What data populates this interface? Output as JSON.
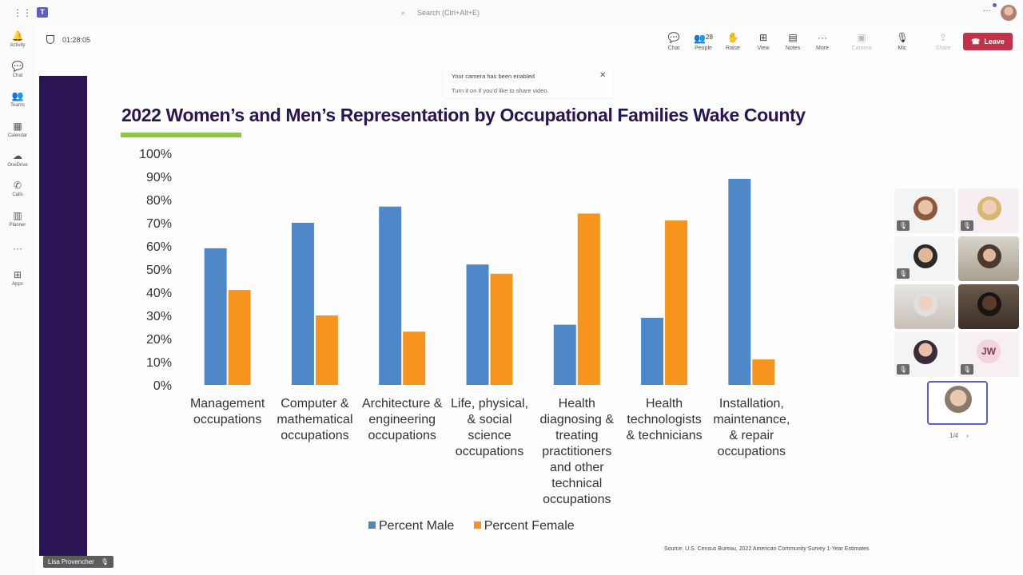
{
  "app": {
    "search_placeholder": "Search (Ctrl+Alt+E)",
    "teams_logo": "T",
    "more": "···"
  },
  "rail": {
    "items": [
      {
        "label": "Activity",
        "icon": "🔔"
      },
      {
        "label": "Chat",
        "icon": "💬"
      },
      {
        "label": "Teams",
        "icon": "👥"
      },
      {
        "label": "Calendar",
        "icon": "▦"
      },
      {
        "label": "OneDrive",
        "icon": "☁"
      },
      {
        "label": "Calls",
        "icon": "✆"
      },
      {
        "label": "Planner",
        "icon": "▥"
      },
      {
        "label": "",
        "icon": "···"
      },
      {
        "label": "Apps",
        "icon": "⊞"
      }
    ]
  },
  "meeting": {
    "timer": "01:28:05",
    "controls": {
      "chat": {
        "label": "Chat",
        "icon": "💬"
      },
      "people": {
        "label": "People",
        "icon": "👥",
        "count": "28"
      },
      "raise": {
        "label": "Raise",
        "icon": "✋"
      },
      "view": {
        "label": "View",
        "icon": "⊞"
      },
      "notes": {
        "label": "Notes",
        "icon": "▤"
      },
      "more": {
        "label": "More",
        "icon": "···"
      },
      "camera": {
        "label": "Camera",
        "icon": "▣"
      },
      "mic": {
        "label": "Mic",
        "icon": "🎙"
      },
      "share": {
        "label": "Share",
        "icon": "⇪"
      }
    },
    "leave_label": "Leave",
    "leave_icon": "☎"
  },
  "toast": {
    "line1": "Your camera has been enabled",
    "line2": "Turn it on if you'd like to share video.",
    "close": "✕"
  },
  "slide": {
    "title": "2022 Women’s and Men’s Representation by Occupational Families Wake County",
    "source": "Source: U.S. Census Bureau, 2022 American Community Survey 1-Year Estimates"
  },
  "chart_data": {
    "type": "bar",
    "title": "2022 Women’s and Men’s Representation by Occupational Families Wake County",
    "categories": [
      [
        "Management",
        "occupations"
      ],
      [
        "Computer &",
        "mathematical",
        "occupations"
      ],
      [
        "Architecture &",
        "engineering",
        "occupations"
      ],
      [
        "Life, physical,",
        "& social",
        "science",
        "occupations"
      ],
      [
        "Health",
        "diagnosing &",
        "treating",
        "practitioners",
        "and other",
        "technical",
        "occupations"
      ],
      [
        "Health",
        "technologists",
        "& technicians"
      ],
      [
        "Installation,",
        "maintenance,",
        "& repair",
        "occupations"
      ]
    ],
    "series": [
      {
        "name": "Percent Male",
        "color": "#4f88c9",
        "values": [
          59,
          70,
          77,
          52,
          26,
          29,
          89
        ]
      },
      {
        "name": "Percent Female",
        "color": "#f7941d",
        "values": [
          41,
          30,
          23,
          48,
          74,
          71,
          11
        ]
      }
    ],
    "yticks": [
      "0%",
      "10%",
      "20%",
      "30%",
      "40%",
      "50%",
      "60%",
      "70%",
      "80%",
      "90%",
      "100%"
    ],
    "ylim": [
      0,
      100
    ],
    "xlabel": "",
    "ylabel": "",
    "legend": "bottom"
  },
  "participants": {
    "jw_initials": "JW",
    "mic_icon": "🎙",
    "pager": "1/4",
    "pager_next": "›"
  },
  "presenter": {
    "name": "Lisa Provencher",
    "mic_icon": "🎙"
  }
}
